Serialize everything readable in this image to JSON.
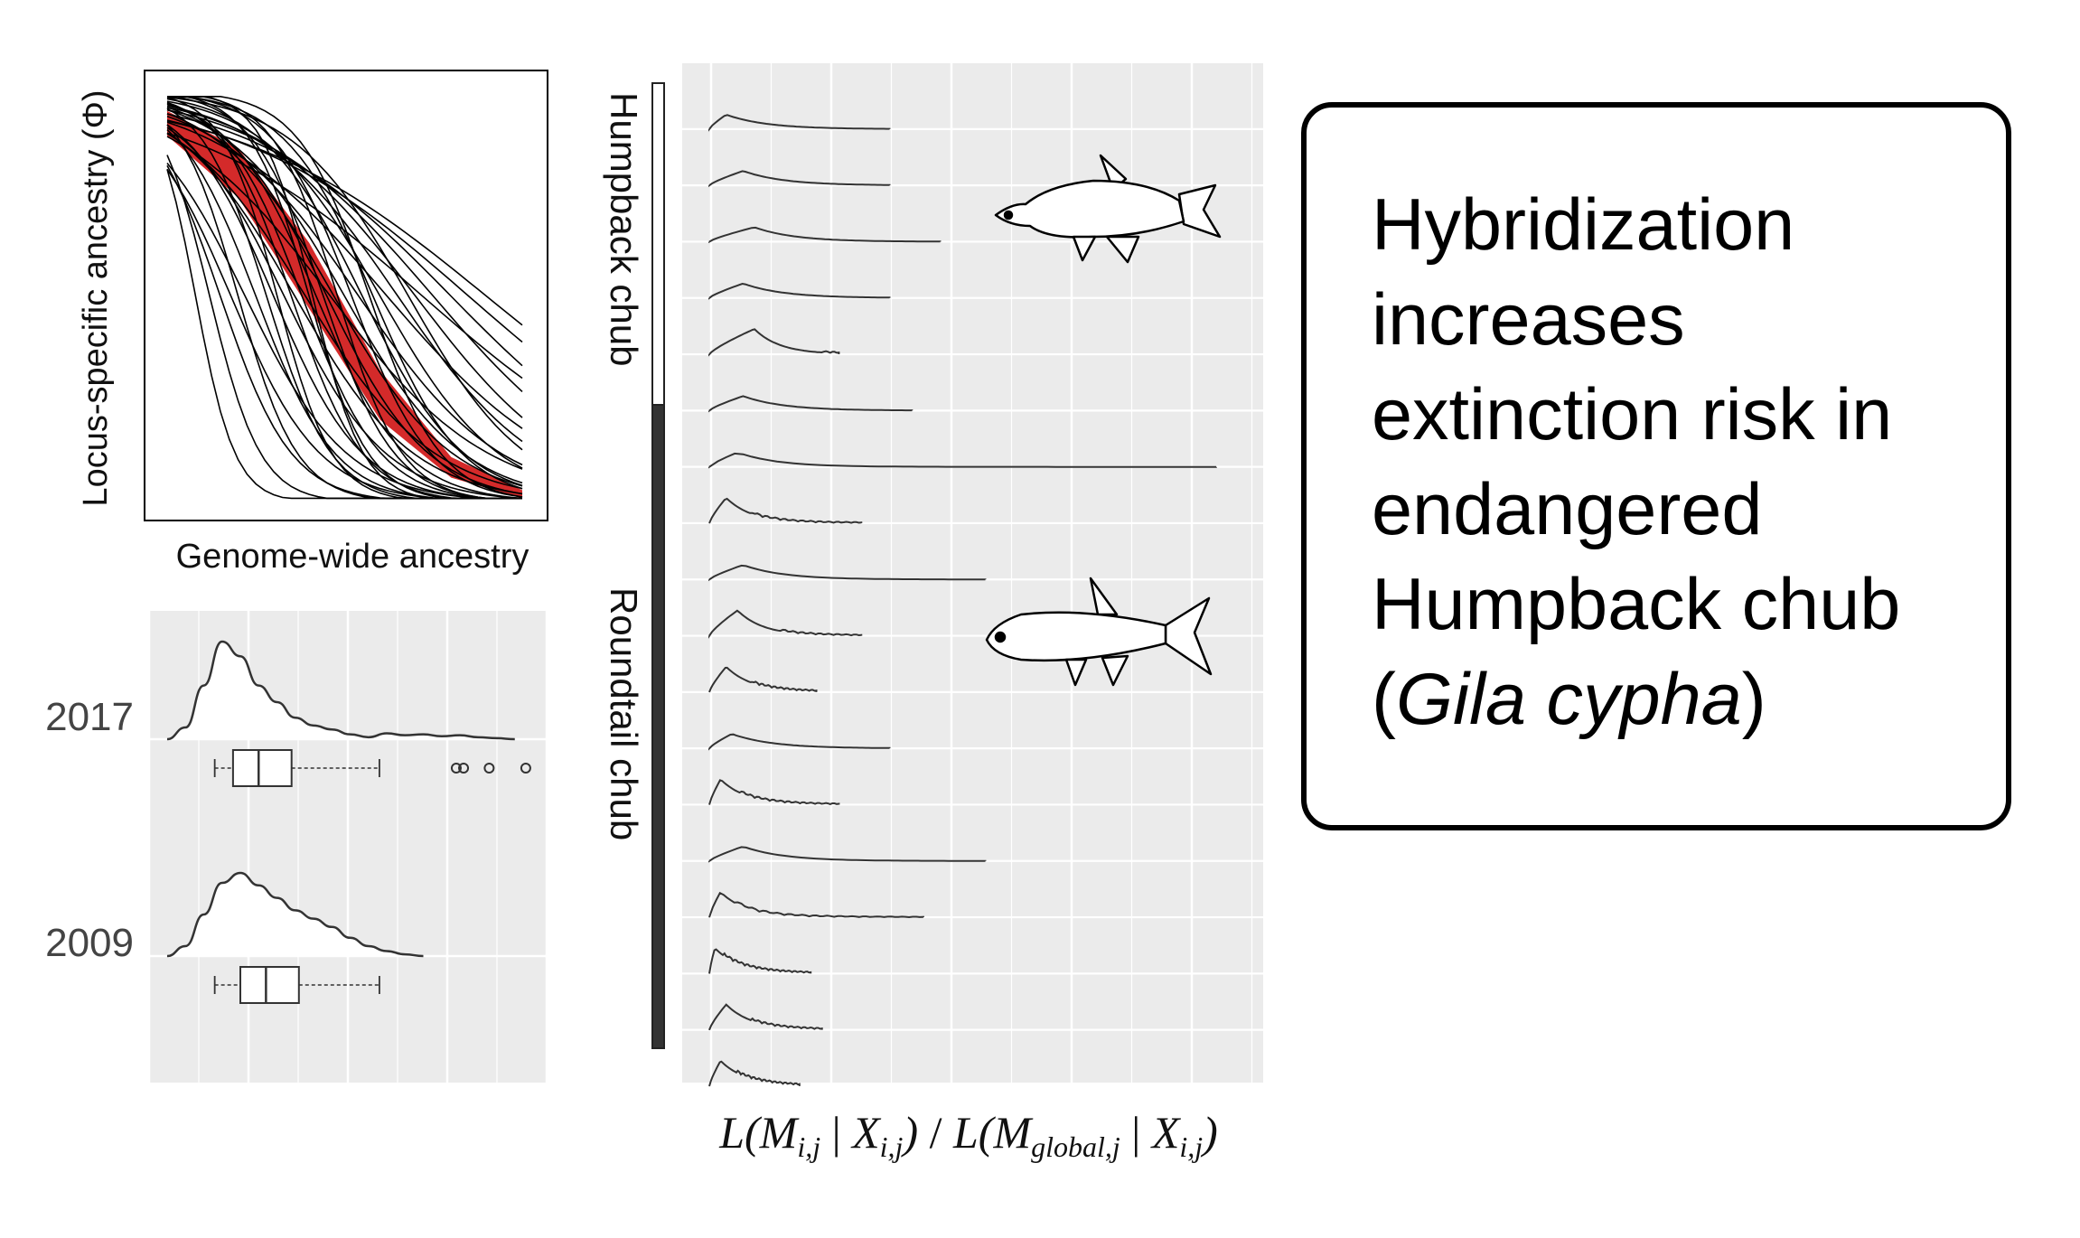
{
  "chart_data": [
    {
      "type": "line",
      "panel": "genomic-cline",
      "title": "",
      "xlabel": "Genome-wide ancestry",
      "ylabel": "Locus-specific ancestry (Φ)",
      "xlim": [
        0,
        1
      ],
      "ylim": [
        0,
        1
      ],
      "grid": false,
      "colors": {
        "clines": "#000000",
        "neutral_band": "#d42a2a"
      },
      "neutral_band": {
        "upper": [
          [
            0,
            0.95
          ],
          [
            0.2,
            0.86
          ],
          [
            0.4,
            0.63
          ],
          [
            0.6,
            0.32
          ],
          [
            0.8,
            0.11
          ],
          [
            1,
            0.03
          ]
        ],
        "lower": [
          [
            0,
            0.89
          ],
          [
            0.2,
            0.74
          ],
          [
            0.4,
            0.47
          ],
          [
            0.6,
            0.2
          ],
          [
            0.8,
            0.06
          ],
          [
            1,
            0.01
          ]
        ]
      },
      "clines": [
        {
          "center": 0.38,
          "slope": 9
        },
        {
          "center": 0.42,
          "slope": 8
        },
        {
          "center": 0.45,
          "slope": 7
        },
        {
          "center": 0.35,
          "slope": 10
        },
        {
          "center": 0.5,
          "slope": 6
        },
        {
          "center": 0.55,
          "slope": 7
        },
        {
          "center": 0.3,
          "slope": 8
        },
        {
          "center": 0.6,
          "slope": 6
        },
        {
          "center": 0.48,
          "slope": 11
        },
        {
          "center": 0.4,
          "slope": 12
        },
        {
          "center": 0.65,
          "slope": 5
        },
        {
          "center": 0.7,
          "slope": 4.5
        },
        {
          "center": 0.75,
          "slope": 4
        },
        {
          "center": 0.8,
          "slope": 3.5
        },
        {
          "center": 0.33,
          "slope": 7
        },
        {
          "center": 0.52,
          "slope": 9
        },
        {
          "center": 0.58,
          "slope": 8
        },
        {
          "center": 0.44,
          "slope": 10
        },
        {
          "center": 0.25,
          "slope": 9
        },
        {
          "center": 0.2,
          "slope": 12
        },
        {
          "center": 0.12,
          "slope": 14
        },
        {
          "center": 0.08,
          "slope": 18
        },
        {
          "center": 0.15,
          "slope": 10
        },
        {
          "center": 0.62,
          "slope": 4
        },
        {
          "center": 0.85,
          "slope": 3
        },
        {
          "center": 0.9,
          "slope": 2.8
        },
        {
          "center": 0.47,
          "slope": 6
        },
        {
          "center": 0.36,
          "slope": 6
        },
        {
          "center": 0.28,
          "slope": 11
        },
        {
          "center": 0.54,
          "slope": 5
        },
        {
          "center": 0.68,
          "slope": 6
        },
        {
          "center": 0.41,
          "slope": 14
        },
        {
          "center": 0.39,
          "slope": 5.5
        },
        {
          "center": 0.31,
          "slope": 13
        },
        {
          "center": 0.57,
          "slope": 10
        },
        {
          "center": 0.22,
          "slope": 7
        },
        {
          "center": 0.72,
          "slope": 3
        },
        {
          "center": 0.46,
          "slope": 4.5
        },
        {
          "center": 0.18,
          "slope": 8
        }
      ]
    },
    {
      "type": "density-boxplot",
      "panel": "year-distributions",
      "categories": [
        "2017",
        "2009"
      ],
      "xlim": [
        0,
        1
      ],
      "grid": true,
      "series": [
        {
          "year": "2017",
          "density_x": [
            0,
            0.05,
            0.1,
            0.15,
            0.2,
            0.25,
            0.3,
            0.35,
            0.4,
            0.45,
            0.5,
            0.55,
            0.6,
            0.65,
            0.7,
            0.75,
            0.8,
            0.85,
            0.9,
            0.95
          ],
          "density_y": [
            0,
            0.12,
            0.55,
            1,
            0.85,
            0.55,
            0.38,
            0.22,
            0.14,
            0.1,
            0.05,
            0.02,
            0.06,
            0.04,
            0.05,
            0.03,
            0.04,
            0.02,
            0.01,
            0
          ],
          "box": {
            "whisker_low": 0.13,
            "q1": 0.18,
            "median": 0.25,
            "q3": 0.34,
            "whisker_high": 0.58
          },
          "outliers": [
            0.79,
            0.81,
            0.88,
            0.98
          ]
        },
        {
          "year": "2009",
          "density_x": [
            0,
            0.05,
            0.1,
            0.15,
            0.2,
            0.25,
            0.3,
            0.35,
            0.4,
            0.45,
            0.5,
            0.55,
            0.6,
            0.65,
            0.7
          ],
          "density_y": [
            0,
            0.12,
            0.5,
            0.88,
            1,
            0.85,
            0.7,
            0.55,
            0.45,
            0.35,
            0.22,
            0.12,
            0.06,
            0.02,
            0
          ],
          "box": {
            "whisker_low": 0.13,
            "q1": 0.2,
            "median": 0.27,
            "q3": 0.36,
            "whisker_high": 0.58
          },
          "outliers": []
        }
      ]
    },
    {
      "type": "ridgeline",
      "panel": "likelihood-ratio",
      "xlabel_parts": {
        "L1": "L(",
        "M1": "M",
        "sub1": "i,j",
        "bar1": " | ",
        "X1": "X",
        "sub2": "i,j",
        "close1": ")",
        "slash": " / ",
        "L2": "L(",
        "M2": "M",
        "sub3": "global,j",
        "bar2": " | ",
        "X2": "X",
        "sub4": "i,j",
        "close2": ")"
      },
      "groups": [
        {
          "label": "Humpback chub",
          "rows": [
            0,
            6
          ]
        },
        {
          "label": "Roundtail chub",
          "rows": [
            6,
            17
          ]
        }
      ],
      "grid": true,
      "xlim": [
        0,
        9.8
      ],
      "rows": [
        {
          "max": 3.2,
          "mode": 0.3,
          "shape": "flat"
        },
        {
          "max": 3.2,
          "mode": 0.6,
          "shape": "flat"
        },
        {
          "max": 4.1,
          "mode": 0.8,
          "shape": "flat"
        },
        {
          "max": 3.2,
          "mode": 0.6,
          "shape": "flat"
        },
        {
          "max": 2.3,
          "mode": 0.8,
          "shape": "peak"
        },
        {
          "max": 3.6,
          "mode": 0.6,
          "shape": "flat"
        },
        {
          "max": 9.0,
          "mode": 0.5,
          "shape": "flat"
        },
        {
          "max": 2.7,
          "mode": 0.3,
          "shape": "peak"
        },
        {
          "max": 4.9,
          "mode": 0.6,
          "shape": "flat"
        },
        {
          "max": 2.7,
          "mode": 0.5,
          "shape": "peak"
        },
        {
          "max": 1.9,
          "mode": 0.3,
          "shape": "peak"
        },
        {
          "max": 3.2,
          "mode": 0.4,
          "shape": "flat"
        },
        {
          "max": 2.3,
          "mode": 0.2,
          "shape": "peak"
        },
        {
          "max": 4.9,
          "mode": 0.6,
          "shape": "flat"
        },
        {
          "max": 3.8,
          "mode": 0.2,
          "shape": "peak"
        },
        {
          "max": 1.8,
          "mode": 0.1,
          "shape": "peak"
        },
        {
          "max": 2.0,
          "mode": 0.3,
          "shape": "peak"
        },
        {
          "max": 1.6,
          "mode": 0.2,
          "shape": "peak"
        }
      ]
    }
  ],
  "callout": {
    "line1": "Hybridization",
    "line2": "increases",
    "line3": "extinction risk in",
    "line4": "endangered",
    "line5": "Humpback chub",
    "open_paren": "(",
    "species": "Gila cypha",
    "close_paren": ")"
  },
  "icons": {
    "top_fish": "humpback-chub-fish-icon",
    "bottom_fish": "roundtail-chub-fish-icon"
  }
}
